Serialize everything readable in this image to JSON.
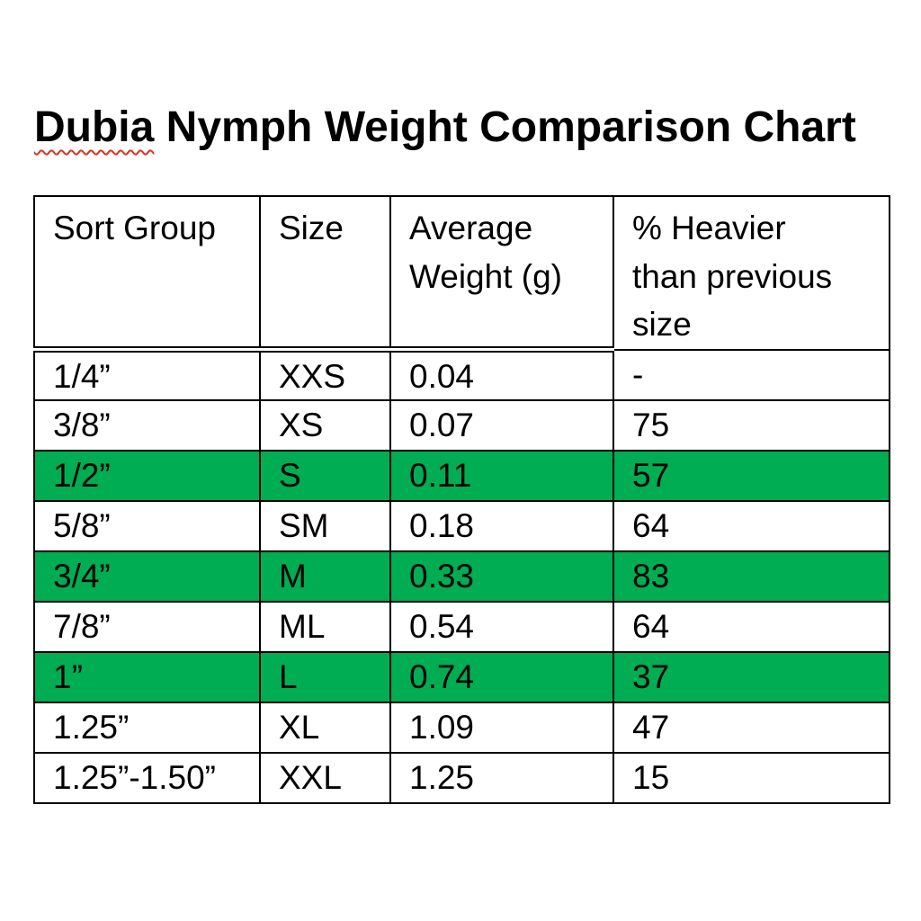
{
  "title": {
    "flagged_word": "Dubia",
    "rest": " Nymph Weight Comparison Chart"
  },
  "colors": {
    "highlight_green": "#00ad52",
    "squiggle_red": "#e0301e",
    "ink": "#000000",
    "background": "#ffffff"
  },
  "chart_data": {
    "type": "table",
    "title": "Dubia Nymph Weight Comparison Chart",
    "columns": [
      "Sort Group",
      "Size",
      "Average\nWeight (g)",
      "% Heavier\nthan previous\nsize"
    ],
    "rows": [
      {
        "cells": [
          "1/4”",
          "XXS",
          "0.04",
          "-"
        ],
        "highlighted": false
      },
      {
        "cells": [
          "3/8”",
          "XS",
          "0.07",
          "75"
        ],
        "highlighted": false
      },
      {
        "cells": [
          "1/2”",
          "S",
          "0.11",
          "57"
        ],
        "highlighted": true
      },
      {
        "cells": [
          "5/8”",
          "SM",
          "0.18",
          "64"
        ],
        "highlighted": false
      },
      {
        "cells": [
          "3/4”",
          "M",
          "0.33",
          "83"
        ],
        "highlighted": true
      },
      {
        "cells": [
          "7/8”",
          "ML",
          "0.54",
          "64"
        ],
        "highlighted": false
      },
      {
        "cells": [
          "1”",
          "L",
          "0.74",
          "37"
        ],
        "highlighted": true
      },
      {
        "cells": [
          "1.25”",
          "XL",
          "1.09",
          "47"
        ],
        "highlighted": false
      },
      {
        "cells": [
          "1.25”-1.50”",
          "XXL",
          "1.25",
          "15"
        ],
        "highlighted": false
      }
    ],
    "highlight_legend": "green rows indicate highlighted sizes",
    "layout": {
      "grid": true,
      "header_double_rule_columns": [
        1,
        2,
        3
      ]
    }
  }
}
